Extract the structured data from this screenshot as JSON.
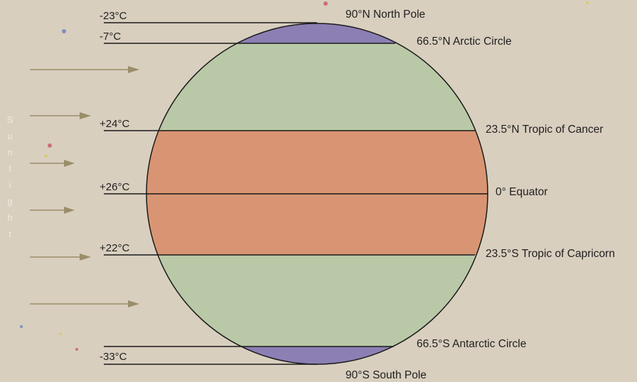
{
  "diagram": {
    "colors": {
      "polar": "#8c7fb3",
      "temperate": "#b9c9a7",
      "tropical": "#d99573",
      "outline": "#1a1a1a",
      "background": "#d9cfbf",
      "arrow": "#9a8e6a"
    },
    "sunlight": {
      "letters": [
        "S",
        "u",
        "n",
        "l",
        "i",
        "g",
        "h",
        "t"
      ],
      "arrow_count": 6
    },
    "temperatures": [
      {
        "id": "north-pole",
        "label": "-23°C"
      },
      {
        "id": "arctic-circle",
        "label": "-7°C"
      },
      {
        "id": "tropic-of-cancer",
        "label": "+24°C"
      },
      {
        "id": "equator",
        "label": "+26°C"
      },
      {
        "id": "tropic-of-capricorn",
        "label": "+22°C"
      },
      {
        "id": "south-pole",
        "label": "-33°C"
      }
    ],
    "latitudes": [
      {
        "id": "north-pole",
        "label": "90°N North Pole"
      },
      {
        "id": "arctic-circle",
        "label": "66.5°N Arctic Circle"
      },
      {
        "id": "tropic-of-cancer",
        "label": "23.5°N Tropic of Cancer"
      },
      {
        "id": "equator",
        "label": "0° Equator"
      },
      {
        "id": "tropic-of-capricorn",
        "label": "23.5°S Tropic of Capricorn"
      },
      {
        "id": "antarctic-circle",
        "label": "66.5°S Antarctic Circle"
      },
      {
        "id": "south-pole",
        "label": "90°S South Pole"
      }
    ]
  }
}
